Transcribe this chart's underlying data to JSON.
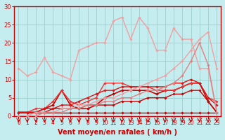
{
  "xlabel": "Vent moyen/en rafales ( km/h )",
  "xlim": [
    -0.5,
    23.5
  ],
  "ylim": [
    0,
    30
  ],
  "yticks": [
    0,
    5,
    10,
    15,
    20,
    25,
    30
  ],
  "xticks": [
    0,
    1,
    2,
    3,
    4,
    5,
    6,
    7,
    8,
    9,
    10,
    11,
    12,
    13,
    14,
    15,
    16,
    17,
    18,
    19,
    20,
    21,
    22,
    23
  ],
  "background_color": "#c5edf0",
  "grid_color": "#9ecece",
  "series": [
    {
      "x": [
        0,
        1,
        2,
        3,
        4,
        5,
        6,
        7,
        8,
        9,
        10,
        11,
        12,
        13,
        14,
        15,
        16,
        17,
        18,
        19,
        20,
        21,
        22,
        23
      ],
      "y": [
        1,
        1,
        1,
        1,
        1,
        1,
        1,
        1,
        1,
        1,
        1,
        1,
        1,
        1,
        1,
        1,
        1,
        1,
        1,
        1,
        1,
        1,
        1,
        1
      ],
      "color": "#cc0000",
      "lw": 1.0,
      "marker": "D",
      "ms": 1.8
    },
    {
      "x": [
        0,
        1,
        2,
        3,
        4,
        5,
        6,
        7,
        8,
        9,
        10,
        11,
        12,
        13,
        14,
        15,
        16,
        17,
        18,
        19,
        20,
        21,
        22,
        23
      ],
      "y": [
        1,
        1,
        1,
        1,
        2,
        2,
        2,
        2,
        3,
        3,
        3,
        3,
        4,
        4,
        4,
        5,
        5,
        5,
        6,
        6,
        7,
        7,
        4,
        1
      ],
      "color": "#cc0000",
      "lw": 1.0,
      "marker": "D",
      "ms": 1.8
    },
    {
      "x": [
        0,
        1,
        2,
        3,
        4,
        5,
        6,
        7,
        8,
        9,
        10,
        11,
        12,
        13,
        14,
        15,
        16,
        17,
        18,
        19,
        20,
        21,
        22,
        23
      ],
      "y": [
        1,
        1,
        1,
        2,
        3,
        7,
        3,
        2,
        2,
        3,
        5,
        6,
        7,
        7,
        7,
        7,
        6,
        7,
        7,
        8,
        9,
        9,
        4,
        1
      ],
      "color": "#cc0000",
      "lw": 1.2,
      "marker": "D",
      "ms": 2.0
    },
    {
      "x": [
        0,
        1,
        2,
        3,
        4,
        5,
        6,
        7,
        8,
        9,
        10,
        11,
        12,
        13,
        14,
        15,
        16,
        17,
        18,
        19,
        20,
        21,
        22,
        23
      ],
      "y": [
        1,
        1,
        2,
        2,
        4,
        7,
        4,
        3,
        4,
        5,
        9,
        9,
        9,
        8,
        8,
        8,
        7,
        7,
        7,
        8,
        9,
        9,
        5,
        4
      ],
      "color": "#ee3333",
      "lw": 1.0,
      "marker": "D",
      "ms": 1.8
    },
    {
      "x": [
        0,
        1,
        2,
        3,
        4,
        5,
        6,
        7,
        8,
        9,
        10,
        11,
        12,
        13,
        14,
        15,
        16,
        17,
        18,
        19,
        20,
        21,
        22,
        23
      ],
      "y": [
        1,
        1,
        1,
        2,
        2,
        3,
        3,
        4,
        5,
        6,
        7,
        7,
        8,
        8,
        8,
        8,
        8,
        8,
        9,
        9,
        10,
        9,
        5,
        3
      ],
      "color": "#dd1111",
      "lw": 1.0,
      "marker": "D",
      "ms": 1.8
    },
    {
      "x": [
        0,
        1,
        2,
        3,
        4,
        5,
        6,
        7,
        8,
        9,
        10,
        11,
        12,
        13,
        14,
        15,
        16,
        17,
        18,
        19,
        20,
        21,
        22,
        23
      ],
      "y": [
        13,
        11,
        12,
        16,
        12,
        11,
        10,
        18,
        19,
        20,
        20,
        26,
        27,
        21,
        27,
        24,
        18,
        18,
        24,
        21,
        21,
        13,
        13,
        1
      ],
      "color": "#f0a0a0",
      "lw": 1.0,
      "marker": "D",
      "ms": 1.8
    },
    {
      "x": [
        0,
        1,
        2,
        3,
        4,
        5,
        6,
        7,
        8,
        9,
        10,
        11,
        12,
        13,
        14,
        15,
        16,
        17,
        18,
        19,
        20,
        21,
        22,
        23
      ],
      "y": [
        0,
        0,
        1,
        1,
        1,
        2,
        2,
        3,
        3,
        4,
        5,
        5,
        6,
        7,
        8,
        9,
        10,
        11,
        13,
        15,
        18,
        21,
        23,
        13
      ],
      "color": "#f0a0a0",
      "lw": 1.0,
      "marker": "D",
      "ms": 1.8
    },
    {
      "x": [
        0,
        1,
        2,
        3,
        4,
        5,
        6,
        7,
        8,
        9,
        10,
        11,
        12,
        13,
        14,
        15,
        16,
        17,
        18,
        19,
        20,
        21,
        22,
        23
      ],
      "y": [
        0,
        0,
        0,
        1,
        1,
        1,
        2,
        2,
        3,
        3,
        4,
        4,
        5,
        5,
        6,
        7,
        7,
        8,
        9,
        11,
        15,
        20,
        14,
        1
      ],
      "color": "#e08080",
      "lw": 1.0,
      "marker": "D",
      "ms": 1.8
    }
  ]
}
